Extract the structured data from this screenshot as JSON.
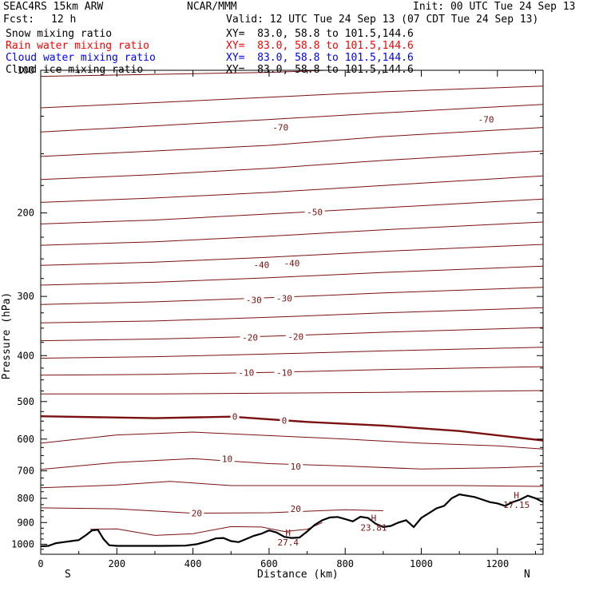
{
  "header": {
    "model": "SEAC4RS 15km ARW",
    "org": "NCAR/MMM",
    "init": "Init: 00 UTC Tue 24 Sep 13",
    "fcst_label": "Fcst:",
    "fcst_value": "12 h",
    "valid": "Valid: 12 UTC Tue 24 Sep 13 (07 CDT Tue 24 Sep 13)"
  },
  "legend": [
    {
      "name": "Snow mixing ratio",
      "xy": "XY=  83.0, 58.8 to 101.5,144.6",
      "color": "#000000"
    },
    {
      "name": "Rain water mixing ratio",
      "xy": "XY=  83.0, 58.8 to 101.5,144.6",
      "color": "#ff0000"
    },
    {
      "name": "Cloud water mixing ratio",
      "xy": "XY=  83.0, 58.8 to 101.5,144.6",
      "color": "#0000ff"
    },
    {
      "name": "Cloud ice mixing ratio",
      "xy": "XY=  83.0, 58.8 to 101.5,144.6",
      "color": "#000000"
    }
  ],
  "chart_data": {
    "type": "line",
    "xlabel": "Distance (km)",
    "ylabel": "Pressure (hPa)",
    "xlim": [
      0,
      1320
    ],
    "ylim": [
      1050,
      100
    ],
    "yscale": "log",
    "xticks": [
      0,
      200,
      400,
      600,
      800,
      1000,
      1200
    ],
    "yticks": [
      100,
      200,
      300,
      400,
      500,
      600,
      700,
      800,
      900,
      1000
    ],
    "end_labels": [
      "S",
      "N"
    ],
    "contour_color": "#7a1010",
    "terrain_color": "#000000",
    "temperature_contours": [
      {
        "level": -80,
        "x": [
          0,
          300,
          600,
          900,
          1320
        ],
        "p": [
          103,
          102,
          101,
          99,
          97
        ]
      },
      {
        "level": -75,
        "x": [
          0,
          300,
          600,
          900,
          1320
        ],
        "p": [
          120,
          117,
          114,
          111,
          108
        ]
      },
      {
        "level": -70,
        "x": [
          0,
          300,
          600,
          900,
          1320
        ],
        "p": [
          135,
          131,
          127,
          123,
          118
        ]
      },
      {
        "level": -65,
        "x": [
          0,
          300,
          600,
          900,
          1320
        ],
        "p": [
          152,
          148,
          144,
          138,
          132
        ]
      },
      {
        "level": -60,
        "x": [
          0,
          300,
          600,
          900,
          1320
        ],
        "p": [
          170,
          166,
          161,
          155,
          148
        ]
      },
      {
        "level": -55,
        "x": [
          0,
          300,
          600,
          900,
          1320
        ],
        "p": [
          190,
          186,
          181,
          175,
          167
        ]
      },
      {
        "level": -50,
        "x": [
          0,
          300,
          600,
          900,
          1320
        ],
        "p": [
          211,
          207,
          201,
          195,
          187
        ]
      },
      {
        "level": -45,
        "x": [
          0,
          300,
          600,
          900,
          1320
        ],
        "p": [
          234,
          230,
          224,
          217,
          209
        ]
      },
      {
        "level": -40,
        "x": [
          0,
          300,
          600,
          900,
          1320
        ],
        "p": [
          258,
          254,
          248,
          241,
          233
        ]
      },
      {
        "level": -35,
        "x": [
          0,
          300,
          600,
          900,
          1320
        ],
        "p": [
          284,
          280,
          274,
          267,
          259
        ]
      },
      {
        "level": -30,
        "x": [
          0,
          300,
          600,
          900,
          1320
        ],
        "p": [
          312,
          308,
          302,
          295,
          287
        ]
      },
      {
        "level": -25,
        "x": [
          0,
          300,
          600,
          900,
          1320
        ],
        "p": [
          341,
          338,
          332,
          325,
          317
        ]
      },
      {
        "level": -20,
        "x": [
          0,
          300,
          600,
          900,
          1320
        ],
        "p": [
          372,
          369,
          364,
          357,
          349
        ]
      },
      {
        "level": -15,
        "x": [
          0,
          300,
          600,
          900,
          1320
        ],
        "p": [
          405,
          402,
          397,
          391,
          384
        ]
      },
      {
        "level": -10,
        "x": [
          0,
          300,
          600,
          900,
          1320
        ],
        "p": [
          440,
          438,
          434,
          428,
          422
        ]
      },
      {
        "level": -5,
        "x": [
          0,
          300,
          600,
          900,
          1320
        ],
        "p": [
          482,
          482,
          480,
          478,
          474
        ]
      },
      {
        "level": 0,
        "x": [
          0,
          300,
          500,
          700,
          900,
          1100,
          1320
        ],
        "p": [
          537,
          542,
          538,
          552,
          562,
          577,
          604
        ]
      },
      {
        "level": 5,
        "x": [
          0,
          200,
          400,
          600,
          800,
          1000,
          1200,
          1320
        ],
        "p": [
          612,
          588,
          580,
          590,
          600,
          612,
          620,
          630
        ]
      },
      {
        "level": 10,
        "x": [
          0,
          200,
          400,
          600,
          800,
          1000,
          1200,
          1320
        ],
        "p": [
          695,
          672,
          660,
          676,
          684,
          694,
          690,
          685
        ]
      },
      {
        "level": 15,
        "x": [
          0,
          200,
          340,
          500,
          800,
          1100,
          1320
        ],
        "p": [
          760,
          750,
          737,
          752,
          752,
          752,
          755
        ]
      },
      {
        "level": 20,
        "x": [
          0,
          200,
          400,
          600,
          800,
          900
        ],
        "p": [
          838,
          842,
          860,
          858,
          846,
          850
        ]
      },
      {
        "level": 25,
        "x": [
          130,
          200,
          300,
          400,
          500,
          580,
          640,
          700,
          740
        ],
        "p": [
          930,
          928,
          958,
          950,
          918,
          920,
          940,
          930,
          900
        ]
      }
    ],
    "contour_labels": [
      {
        "text": "-70",
        "x": 630,
        "p": 132
      },
      {
        "text": "-70",
        "x": 1170,
        "p": 127
      },
      {
        "text": "-50",
        "x": 720,
        "p": 199
      },
      {
        "text": "-40",
        "x": 580,
        "p": 257
      },
      {
        "text": "-40",
        "x": 660,
        "p": 255
      },
      {
        "text": "-30",
        "x": 560,
        "p": 305
      },
      {
        "text": "-30",
        "x": 640,
        "p": 303
      },
      {
        "text": "-20",
        "x": 550,
        "p": 366
      },
      {
        "text": "-20",
        "x": 670,
        "p": 365
      },
      {
        "text": "-10",
        "x": 540,
        "p": 434
      },
      {
        "text": "-10",
        "x": 640,
        "p": 434
      },
      {
        "text": "0",
        "x": 510,
        "p": 538
      },
      {
        "text": "0",
        "x": 640,
        "p": 548
      },
      {
        "text": "10",
        "x": 490,
        "p": 661
      },
      {
        "text": "10",
        "x": 670,
        "p": 685
      },
      {
        "text": "20",
        "x": 410,
        "p": 860
      },
      {
        "text": "20",
        "x": 670,
        "p": 842
      }
    ],
    "highs": [
      {
        "letter": "H",
        "value": "27.4",
        "x": 650,
        "p": 960
      },
      {
        "letter": "H",
        "value": "23.81",
        "x": 875,
        "p": 893
      },
      {
        "letter": "H",
        "value": "17.15",
        "x": 1250,
        "p": 800
      }
    ],
    "terrain": {
      "x": [
        0,
        20,
        40,
        60,
        80,
        100,
        120,
        135,
        150,
        165,
        180,
        200,
        260,
        320,
        380,
        410,
        440,
        460,
        480,
        500,
        520,
        540,
        560,
        580,
        600,
        620,
        640,
        660,
        680,
        700,
        720,
        740,
        760,
        780,
        800,
        820,
        840,
        860,
        880,
        900,
        920,
        940,
        960,
        980,
        1000,
        1020,
        1040,
        1060,
        1080,
        1100,
        1120,
        1140,
        1160,
        1180,
        1200,
        1220,
        1240,
        1260,
        1280,
        1300,
        1320
      ],
      "p": [
        1010,
        1008,
        995,
        990,
        985,
        980,
        955,
        935,
        932,
        975,
        1005,
        1008,
        1008,
        1008,
        1007,
        1000,
        985,
        972,
        970,
        985,
        990,
        975,
        960,
        950,
        935,
        945,
        965,
        970,
        968,
        940,
        910,
        890,
        878,
        876,
        885,
        895,
        875,
        880,
        905,
        920,
        915,
        900,
        890,
        920,
        880,
        860,
        840,
        830,
        800,
        785,
        790,
        795,
        805,
        815,
        820,
        830,
        815,
        805,
        790,
        800,
        815
      ]
    }
  }
}
